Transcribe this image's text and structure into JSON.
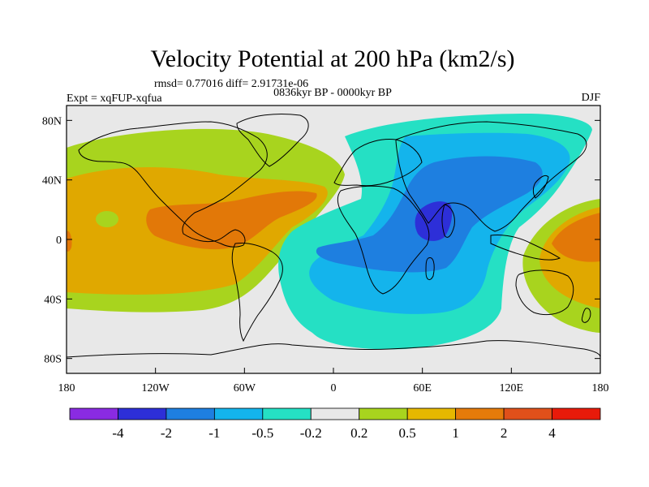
{
  "title": "Velocity Potential at 200 hPa (km2/s)",
  "stats_line": "rmsd= 0.77016 diff= 2.91731e-06",
  "left_label": "Expt = xqFUP-xqfua",
  "center_label": "0836kyr BP - 0000kyr BP",
  "right_label": "DJF",
  "projection": "cylindrical-equidistant",
  "lon_range": [
    -180,
    180
  ],
  "lat_range": [
    -90,
    90
  ],
  "lat_ticks": [
    {
      "value": 80,
      "label": "80N"
    },
    {
      "value": 40,
      "label": "40N"
    },
    {
      "value": 0,
      "label": "0"
    },
    {
      "value": -40,
      "label": "40S"
    },
    {
      "value": -80,
      "label": "80S"
    }
  ],
  "lon_ticks": [
    {
      "value": -180,
      "label": "180"
    },
    {
      "value": -120,
      "label": "120W"
    },
    {
      "value": -60,
      "label": "60W"
    },
    {
      "value": 0,
      "label": "0"
    },
    {
      "value": 60,
      "label": "60E"
    },
    {
      "value": 120,
      "label": "120E"
    },
    {
      "value": 180,
      "label": "180"
    }
  ],
  "colorbar": {
    "labels": [
      "-4",
      "-2",
      "-1",
      "-0.5",
      "-0.2",
      "0.2",
      "0.5",
      "1",
      "2",
      "4"
    ],
    "colors": [
      "#8a2be2",
      "#2d2fd8",
      "#1e7fe0",
      "#14b4ec",
      "#25e0c4",
      "#e8e8e8",
      "#a8d41e",
      "#e6b800",
      "#e57b0a",
      "#e0501a",
      "#e81a0a"
    ]
  },
  "contour_colors": {
    "background": "#e8e8e8",
    "pos_02": "#a8d41e",
    "pos_05": "#e0a800",
    "pos_1": "#e27808",
    "neg_02": "#25e0c4",
    "neg_05": "#14b4ec",
    "neg_1": "#1e7fe0",
    "neg_2": "#2d2fd8"
  }
}
